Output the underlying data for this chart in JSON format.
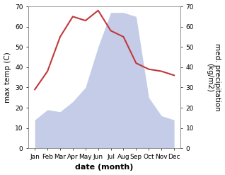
{
  "months": [
    "Jan",
    "Feb",
    "Mar",
    "Apr",
    "May",
    "Jun",
    "Jul",
    "Aug",
    "Sep",
    "Oct",
    "Nov",
    "Dec"
  ],
  "temperature": [
    29,
    38,
    55,
    65,
    63,
    68,
    58,
    55,
    42,
    39,
    38,
    36
  ],
  "precipitation": [
    14,
    19,
    18,
    23,
    30,
    50,
    67,
    67,
    65,
    25,
    16,
    14
  ],
  "temp_color": "#c0393b",
  "precip_fill_color": "#c5cce8",
  "ylabel_left": "max temp (C)",
  "ylabel_right": "med. precipitation\n(kg/m2)",
  "xlabel": "date (month)",
  "ylim_left": [
    0,
    70
  ],
  "ylim_right": [
    0,
    70
  ],
  "yticks": [
    0,
    10,
    20,
    30,
    40,
    50,
    60,
    70
  ],
  "bg_color": "#ffffff",
  "label_fontsize": 7.5,
  "tick_fontsize": 6.5,
  "xlabel_fontsize": 8,
  "line_width": 1.5
}
